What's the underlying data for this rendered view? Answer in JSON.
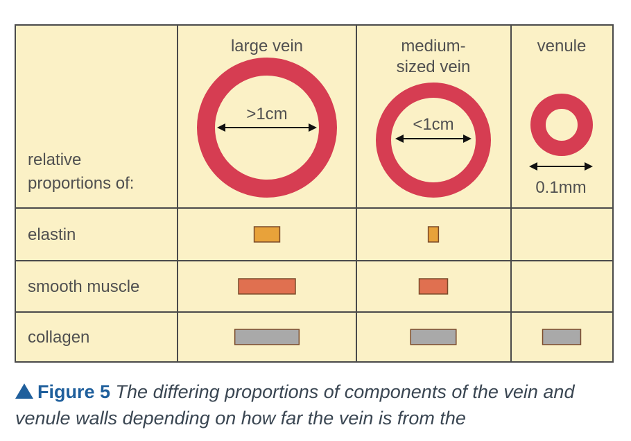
{
  "columns": [
    {
      "id": "large",
      "label_lines": [
        "large vein"
      ],
      "size_label": ">1cm"
    },
    {
      "id": "medium",
      "label_lines": [
        "medium-",
        "sized vein"
      ],
      "size_label": "<1cm"
    },
    {
      "id": "venule",
      "label_lines": [
        "venule"
      ],
      "size_label": "0.1mm"
    }
  ],
  "header_label_lines": [
    "relative",
    "proportions of:"
  ],
  "rows": [
    {
      "id": "elastin",
      "label": "elastin",
      "color": "#e8a23a",
      "widths": [
        0.45,
        0.18,
        0
      ]
    },
    {
      "id": "smooth_muscle",
      "label": "smooth muscle",
      "color": "#e07050",
      "widths": [
        1.0,
        0.5,
        0
      ]
    },
    {
      "id": "collagen",
      "label": "collagen",
      "color": "#a9a9a9",
      "widths": [
        1.13,
        0.8,
        0.67
      ]
    }
  ],
  "colors": {
    "table_bg": "#fbf1c6",
    "grid": "#4a4a4a",
    "vessel_wall": "#d63d52",
    "text": "#505050"
  },
  "caption": {
    "figure_label": "Figure 5",
    "text": "The differing proportions of components of the vein and venule walls depending on how far the vein is from the"
  }
}
